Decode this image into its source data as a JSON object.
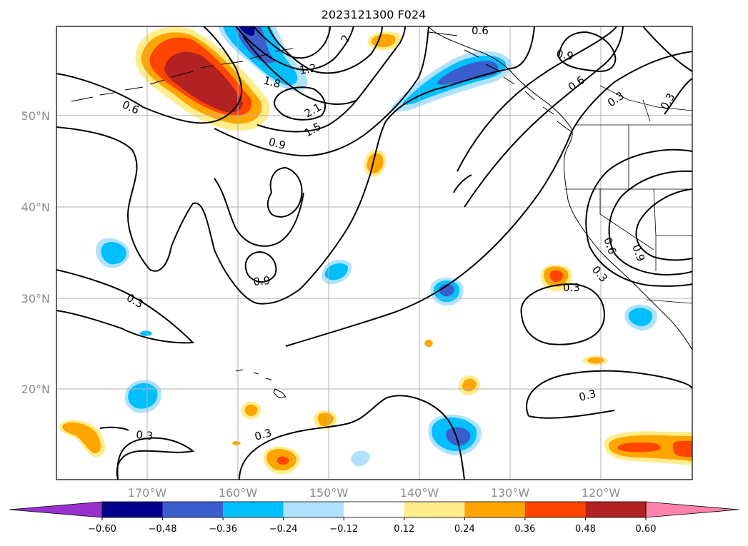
{
  "title": "2023121300 F024",
  "map": {
    "lat_labels": [
      "50°N",
      "40°N",
      "30°N",
      "20°N"
    ],
    "lon_labels": [
      "170°W",
      "160°W",
      "150°W",
      "140°W",
      "130°W",
      "120°W"
    ],
    "contour_labels": [
      "0.6",
      "1.2",
      "1.8",
      "2.1",
      "1.5",
      "0.9",
      "0.6",
      "0.9",
      "0.6",
      "0.3",
      "0.3",
      "0.9",
      "0.3",
      "0.6",
      "0.9",
      "0.3",
      "0.3",
      "0.3",
      "0.3",
      "0.3",
      "2"
    ]
  },
  "colorbar": {
    "ticks": [
      "−0.60",
      "−0.48",
      "−0.36",
      "−0.24",
      "−0.12",
      "0.12",
      "0.24",
      "0.36",
      "0.48",
      "0.60"
    ],
    "colors": [
      "#9932cc",
      "#00008b",
      "#3a5fcd",
      "#00bfff",
      "#b0e2ff",
      "#ffffff",
      "#ffec8b",
      "#ffa500",
      "#ff4500",
      "#b22222",
      "#ff82ab"
    ]
  }
}
